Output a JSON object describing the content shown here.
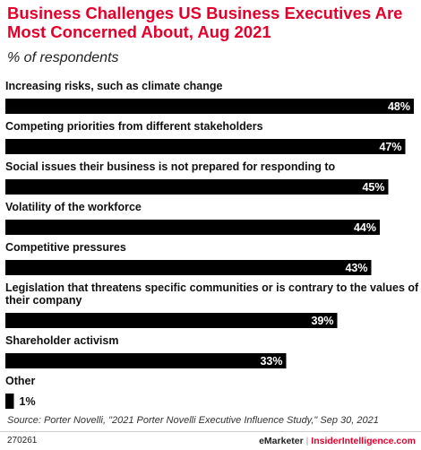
{
  "header": {
    "title": "Business Challenges US Business Executives Are Most Concerned About, Aug 2021",
    "subtitle": "% of respondents"
  },
  "colors": {
    "title": "#e4002b",
    "bar": "#000000"
  },
  "chart_data": {
    "type": "bar",
    "orientation": "horizontal",
    "title": "Business Challenges US Business Executives Are Most Concerned About, Aug 2021",
    "subtitle": "% of respondents",
    "categories": [
      "Increasing risks, such as climate change",
      "Competing priorities from different stakeholders",
      "Social issues their business is not prepared for responding to",
      "Volatility of the workforce",
      "Competitive pressures",
      "Legislation that threatens specific communities or is contrary to the values of their company",
      "Shareholder activism",
      "Other"
    ],
    "label_lines": [
      [
        "Increasing risks, such as climate change"
      ],
      [
        "Competing priorities from different stakeholders"
      ],
      [
        "Social issues their business is not prepared for responding to"
      ],
      [
        "Volatility of the workforce"
      ],
      [
        "Competitive pressures"
      ],
      [
        "Legislation that threatens specific communities or is contrary to the values of",
        "their company"
      ],
      [
        "Shareholder activism"
      ],
      [
        "Other"
      ]
    ],
    "values": [
      48,
      47,
      45,
      44,
      43,
      39,
      33,
      1
    ],
    "value_labels": [
      "48%",
      "47%",
      "45%",
      "44%",
      "43%",
      "39%",
      "33%",
      "1%"
    ],
    "xlim": [
      0,
      48
    ],
    "grid": false,
    "legend": "none"
  },
  "footer": {
    "source": "Source: Porter Novelli, \"2021 Porter Novelli Executive Influence Study,\" Sep 30, 2021",
    "chart_id": "270261",
    "brand_left": "eMarketer",
    "brand_sep": "|",
    "brand_right": "InsiderIntelligence.com"
  }
}
